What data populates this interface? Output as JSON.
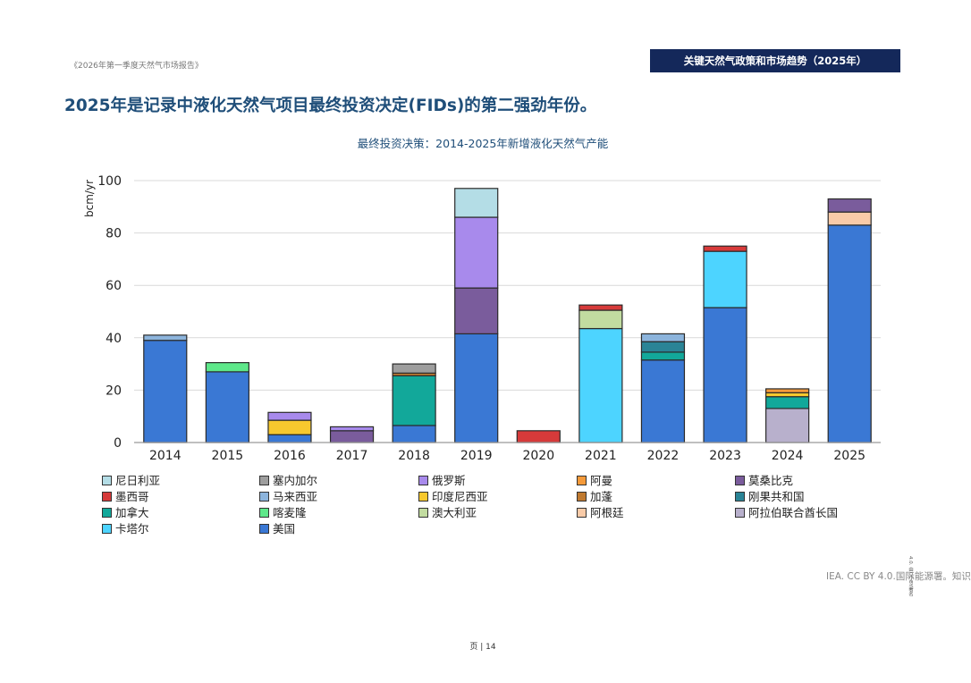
{
  "report_title": "《2026年第一季度天然气市场报告》",
  "header_box": "关键天然气政策和市场趋势（2025年）",
  "headline": "2025年是记录中液化天然气项目最终投资决定(FIDs)的第二强劲年份。",
  "credit": "IEA. CC BY 4.0.国际能源署。知识",
  "vertical_note": "4.0. 由CC BY署名",
  "footer": "页 | 14",
  "chart_data": {
    "type": "bar",
    "stacked": true,
    "title": "最终投资决策：2014-2025年新增液化天然气产能",
    "ylabel": "bcm/yr",
    "xlabel": "",
    "ylim": [
      0,
      100
    ],
    "yticks": [
      0,
      20,
      40,
      60,
      80,
      100
    ],
    "grid": true,
    "categories": [
      "2014",
      "2015",
      "2016",
      "2017",
      "2018",
      "2019",
      "2020",
      "2021",
      "2022",
      "2023",
      "2024",
      "2025"
    ],
    "series": [
      {
        "name": "美国",
        "color": "#3a78d4",
        "values": [
          39,
          27,
          3,
          0,
          6.5,
          41.5,
          0,
          0,
          31.5,
          51.5,
          0,
          83
        ]
      },
      {
        "name": "卡塔尔",
        "color": "#4dd4ff",
        "values": [
          0,
          0,
          0,
          0,
          0,
          0,
          0,
          43.5,
          0,
          21.5,
          0,
          0
        ]
      },
      {
        "name": "阿拉伯联合酋长国",
        "color": "#b8b0cc",
        "values": [
          0,
          0,
          0,
          0,
          0,
          0,
          0,
          0,
          0,
          0,
          13,
          0
        ]
      },
      {
        "name": "加拿大",
        "color": "#12a89a",
        "values": [
          0,
          0,
          0,
          0,
          19,
          0,
          0,
          0,
          3,
          0,
          4.5,
          0
        ]
      },
      {
        "name": "刚果共和国",
        "color": "#2a8496",
        "values": [
          0,
          0,
          0,
          0,
          0,
          0,
          0,
          0,
          4,
          0,
          0,
          0
        ]
      },
      {
        "name": "马来西亚",
        "color": "#8cb4dc",
        "values": [
          2,
          0,
          0,
          0,
          0,
          0,
          0,
          0,
          3,
          0,
          0,
          0
        ]
      },
      {
        "name": "阿根廷",
        "color": "#f9cba8",
        "values": [
          0,
          0,
          0,
          0,
          0,
          0,
          0,
          0,
          0,
          0,
          0,
          5
        ]
      },
      {
        "name": "莫桑比克",
        "color": "#7a5c9c",
        "values": [
          0,
          0,
          0,
          4.5,
          0,
          17.5,
          0,
          0,
          0,
          0,
          0,
          5
        ]
      },
      {
        "name": "印度尼西亚",
        "color": "#f7c82e",
        "values": [
          0,
          0,
          5.5,
          0,
          0,
          0,
          0,
          0,
          0,
          0,
          1.5,
          0
        ]
      },
      {
        "name": "阿曼",
        "color": "#f59a3a",
        "values": [
          0,
          0,
          0,
          0,
          0,
          0,
          0,
          0,
          0,
          0,
          1.5,
          0
        ]
      },
      {
        "name": "加蓬",
        "color": "#c07a30",
        "values": [
          0,
          0,
          0,
          0,
          1,
          0,
          0,
          0,
          0,
          0,
          0,
          0
        ]
      },
      {
        "name": "喀麦隆",
        "color": "#5ee88a",
        "values": [
          0,
          3.5,
          0,
          0,
          0,
          0,
          0,
          0,
          0,
          0,
          0,
          0
        ]
      },
      {
        "name": "澳大利亚",
        "color": "#c2dca0",
        "values": [
          0,
          0,
          0,
          0,
          0,
          0,
          0,
          7,
          0,
          0,
          0,
          0
        ]
      },
      {
        "name": "俄罗斯",
        "color": "#a88aec",
        "values": [
          0,
          0,
          3,
          1.5,
          0,
          27,
          0,
          0,
          0,
          0,
          0,
          0
        ]
      },
      {
        "name": "塞内加尔",
        "color": "#9e9e9e",
        "values": [
          0,
          0,
          0,
          0,
          3.5,
          0,
          0,
          0,
          0,
          0,
          0,
          0
        ]
      },
      {
        "name": "墨西哥",
        "color": "#d63a3a",
        "values": [
          0,
          0,
          0,
          0,
          0,
          0,
          4.5,
          2,
          0,
          2,
          0,
          0
        ]
      },
      {
        "name": "尼日利亚",
        "color": "#b4dde6",
        "values": [
          0,
          0,
          0,
          0,
          0,
          11,
          0,
          0,
          0,
          0,
          0,
          0
        ]
      }
    ],
    "legend": [
      {
        "name": "尼日利亚",
        "color": "#b4dde6"
      },
      {
        "name": "塞内加尔",
        "color": "#9e9e9e"
      },
      {
        "name": "俄罗斯",
        "color": "#a88aec"
      },
      {
        "name": "阿曼",
        "color": "#f59a3a"
      },
      {
        "name": "莫桑比克",
        "color": "#7a5c9c"
      },
      {
        "name": "墨西哥",
        "color": "#d63a3a"
      },
      {
        "name": "马来西亚",
        "color": "#8cb4dc"
      },
      {
        "name": "印度尼西亚",
        "color": "#f7c82e"
      },
      {
        "name": "加蓬",
        "color": "#c07a30"
      },
      {
        "name": "刚果共和国",
        "color": "#2a8496"
      },
      {
        "name": "加拿大",
        "color": "#12a89a"
      },
      {
        "name": "喀麦隆",
        "color": "#5ee88a"
      },
      {
        "name": "澳大利亚",
        "color": "#c2dca0"
      },
      {
        "name": "阿根廷",
        "color": "#f9cba8"
      },
      {
        "name": "阿拉伯联合酋长国",
        "color": "#b8b0cc"
      },
      {
        "name": "卡塔尔",
        "color": "#4dd4ff"
      },
      {
        "name": "美国",
        "color": "#3a78d4"
      }
    ]
  }
}
